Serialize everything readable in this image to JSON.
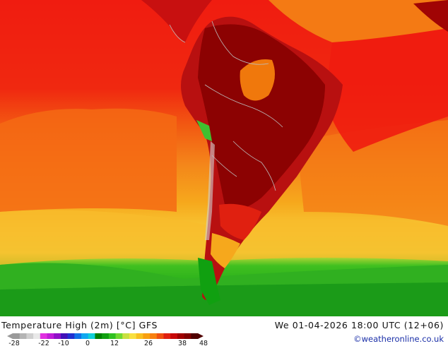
{
  "map": {
    "title": "Temperature High (2m) [°C] GFS",
    "datetime": "We 01-04-2026 18:00 UTC (12+06)",
    "credit": "©weatheronline.co.uk"
  },
  "legend": {
    "ticks": [
      "-28",
      "-22",
      "-10",
      "0",
      "12",
      "26",
      "38",
      "48"
    ],
    "colors": [
      "#9a9a9a",
      "#b4b4b4",
      "#cfcfcf",
      "#e8e8e8",
      "#e030e0",
      "#c01cd8",
      "#9010c8",
      "#4010b8",
      "#2030d0",
      "#1070e8",
      "#10a8f0",
      "#10d0d8",
      "#008000",
      "#10a010",
      "#30c020",
      "#70d830",
      "#c8e040",
      "#f8e040",
      "#f8c020",
      "#f8a010",
      "#f88010",
      "#f05010",
      "#e02010",
      "#c80808",
      "#a00000",
      "#800000",
      "#500000"
    ]
  }
}
